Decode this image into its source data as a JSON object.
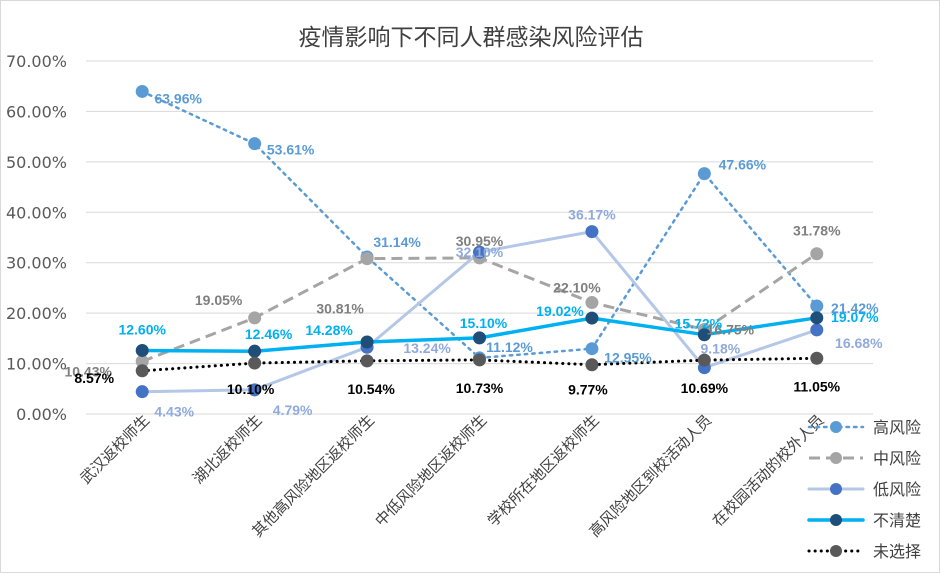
{
  "chart_data": {
    "type": "line",
    "title": "疫情影响下不同人群感染风险评估",
    "xlabel": "",
    "ylabel": "",
    "ylim": [
      0,
      70
    ],
    "y_tick_format": "percent_2dp",
    "y_ticks": [
      "0.00%",
      "10.00%",
      "20.00%",
      "30.00%",
      "40.00%",
      "50.00%",
      "60.00%",
      "70.00%"
    ],
    "grid": "horizontal",
    "legend_position": "right",
    "categories": [
      "武汉返校师生",
      "湖北返校师生",
      "其他高风险地区返校师生",
      "中低风险地区返校师生",
      "学校所在地区返校师生",
      "高风险地区到校活动人员",
      "在校园活动的校外人员"
    ],
    "series": [
      {
        "name": "高风险",
        "color": "#5b9bd5",
        "line": "dotted",
        "values": [
          63.96,
          53.61,
          31.14,
          11.12,
          12.95,
          47.66,
          21.42
        ]
      },
      {
        "name": "中风险",
        "color": "#a5a5a5",
        "line": "dashed",
        "values": [
          10.43,
          19.05,
          30.81,
          30.95,
          22.1,
          16.75,
          31.78
        ]
      },
      {
        "name": "低风险",
        "color": "#4472c4",
        "line_color": "#b4c7e7",
        "line": "solid",
        "values": [
          4.43,
          4.79,
          13.24,
          32.1,
          36.17,
          9.18,
          16.68
        ]
      },
      {
        "name": "不清楚",
        "color": "#1f4e79",
        "line_color": "#00b0f0",
        "line": "solid-thick",
        "values": [
          12.6,
          12.46,
          14.28,
          15.1,
          19.02,
          15.72,
          19.07
        ]
      },
      {
        "name": "未选择",
        "color": "#595959",
        "line_color": "#000000",
        "line": "dotted-black",
        "values": [
          8.57,
          10.1,
          10.54,
          10.73,
          9.77,
          10.69,
          11.05
        ]
      }
    ],
    "data_labels": {
      "高风险": [
        "63.96%",
        "53.61%",
        "31.14%",
        "11.12%",
        "12.95%",
        "47.66%",
        "21.42%"
      ],
      "中风险": [
        "10.43%",
        "19.05%",
        "30.81%",
        "30.95%",
        "22.10%",
        "16.75%",
        "31.78%"
      ],
      "低风险": [
        "4.43%",
        "4.79%",
        "13.24%",
        "32.10%",
        "36.17%",
        "9.18%",
        "16.68%"
      ],
      "不清楚": [
        "12.60%",
        "12.46%",
        "14.28%",
        "15.10%",
        "19.02%",
        "15.72%",
        "19.07%"
      ],
      "未选择": [
        "8.57%",
        "10.10%",
        "10.54%",
        "10.73%",
        "9.77%",
        "10.69%",
        "11.05%"
      ]
    },
    "label_colors": {
      "高风险": "#5b9bd5",
      "中风险": "#7f7f7f",
      "低风险": "#8faadc",
      "不清楚": "#00b0f0",
      "未选择": "#000000"
    }
  }
}
